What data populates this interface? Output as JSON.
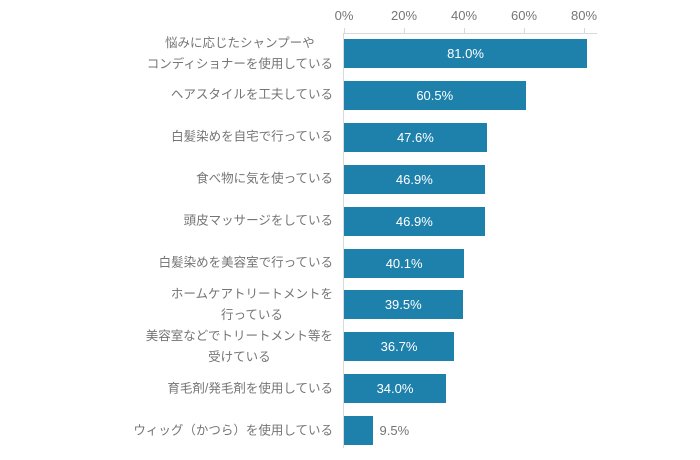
{
  "chart_data": {
    "type": "bar",
    "orientation": "horizontal",
    "title": "",
    "xlabel": "",
    "ylabel": "",
    "xlim": [
      0,
      80
    ],
    "grid": false,
    "legend": false,
    "x_ticks": [
      {
        "value": 0,
        "label": "0%"
      },
      {
        "value": 20,
        "label": "20%"
      },
      {
        "value": 40,
        "label": "40%"
      },
      {
        "value": 60,
        "label": "60%"
      },
      {
        "value": 80,
        "label": "80%"
      }
    ],
    "categories": [
      "悩みに応じたシャンプーや\nコンディショナーを使用している",
      "ヘアスタイルを工夫している",
      "白髪染めを自宅で行っている",
      "食べ物に気を使っている",
      "頭皮マッサージをしている",
      "白髪染めを美容室で行っている",
      "ホームケアトリートメントを\n行っている",
      "美容室などでトリートメント等を\n受けている",
      "育毛剤/発毛剤を使用している",
      "ウィッグ（かつら）を使用している"
    ],
    "values": [
      81.0,
      60.5,
      47.6,
      46.9,
      46.9,
      40.1,
      39.5,
      36.7,
      34.0,
      9.5
    ],
    "value_labels": [
      "81.0%",
      "60.5%",
      "47.6%",
      "46.9%",
      "46.9%",
      "40.1%",
      "39.5%",
      "36.7%",
      "34.0%",
      "9.5%"
    ],
    "colors": {
      "bar": "#1e81ac",
      "axis_line": "#d9d9d9",
      "tick_text": "#757575",
      "category_text": "#757575",
      "value_text_inside": "#ffffff",
      "value_text_outside": "#757575",
      "background": "#ffffff"
    }
  }
}
